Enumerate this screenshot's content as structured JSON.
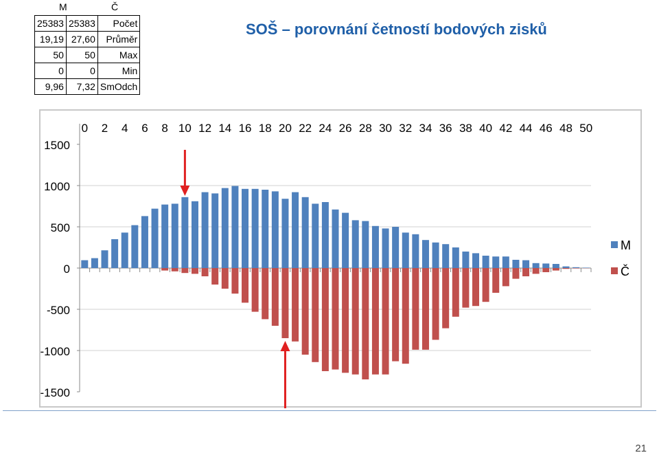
{
  "stats_table": {
    "header_m": "M",
    "header_c": "Č",
    "rows": [
      {
        "m": "25383",
        "c": "25383",
        "label": "Počet"
      },
      {
        "m": "19,19",
        "c": "27,60",
        "label": "Průměr"
      },
      {
        "m": "50",
        "c": "50",
        "label": "Max"
      },
      {
        "m": "0",
        "c": "0",
        "label": "Min"
      },
      {
        "m": "9,96",
        "c": "7,32",
        "label": "SmOdch"
      }
    ]
  },
  "slide_title": "SOŠ – porovnání četností bodových zisků",
  "page_number": "21",
  "colors": {
    "series_m": "#4f81bd",
    "series_c": "#c0504d",
    "arrow": "#e02020",
    "title": "#1f5fa8"
  },
  "chart_data": {
    "type": "bar",
    "categories": [
      "0",
      "1",
      "2",
      "3",
      "4",
      "5",
      "6",
      "7",
      "8",
      "9",
      "10",
      "11",
      "12",
      "13",
      "14",
      "15",
      "16",
      "17",
      "18",
      "19",
      "20",
      "21",
      "22",
      "23",
      "24",
      "25",
      "26",
      "27",
      "28",
      "29",
      "30",
      "31",
      "32",
      "33",
      "34",
      "35",
      "36",
      "37",
      "38",
      "39",
      "40",
      "41",
      "42",
      "43",
      "44",
      "45",
      "46",
      "47",
      "48",
      "49",
      "50"
    ],
    "x_tick_labels": [
      "0",
      "2",
      "4",
      "6",
      "8",
      "10",
      "12",
      "14",
      "16",
      "18",
      "20",
      "22",
      "24",
      "26",
      "28",
      "30",
      "32",
      "34",
      "36",
      "38",
      "40",
      "42",
      "44",
      "46",
      "48",
      "50"
    ],
    "y_tick_labels": [
      "1500",
      "1000",
      "500",
      "0",
      "-500",
      "-1000",
      "-1500"
    ],
    "ylim": [
      -1500,
      1500
    ],
    "legend_position": "right",
    "series": [
      {
        "name": "M",
        "values": [
          95,
          120,
          215,
          350,
          430,
          520,
          630,
          720,
          770,
          780,
          860,
          810,
          920,
          905,
          970,
          995,
          960,
          960,
          950,
          930,
          840,
          920,
          860,
          780,
          800,
          710,
          670,
          580,
          570,
          510,
          480,
          500,
          430,
          410,
          340,
          310,
          290,
          250,
          200,
          180,
          150,
          140,
          140,
          100,
          95,
          60,
          55,
          50,
          20,
          10,
          5
        ]
      },
      {
        "name": "Č",
        "values": [
          0,
          0,
          0,
          0,
          0,
          0,
          0,
          0,
          -30,
          -40,
          -60,
          -70,
          -100,
          -200,
          -250,
          -310,
          -420,
          -530,
          -620,
          -700,
          -850,
          -890,
          -1050,
          -1140,
          -1250,
          -1230,
          -1270,
          -1290,
          -1350,
          -1290,
          -1290,
          -1130,
          -1160,
          -990,
          -990,
          -870,
          -730,
          -590,
          -480,
          -460,
          -410,
          -300,
          -220,
          -130,
          -100,
          -70,
          -50,
          -30,
          -10,
          -5,
          -2
        ]
      }
    ],
    "annotations": [
      {
        "type": "arrow",
        "points_to_x": 10,
        "direction": "down"
      },
      {
        "type": "arrow",
        "points_to_x": 20,
        "direction": "up"
      }
    ]
  }
}
